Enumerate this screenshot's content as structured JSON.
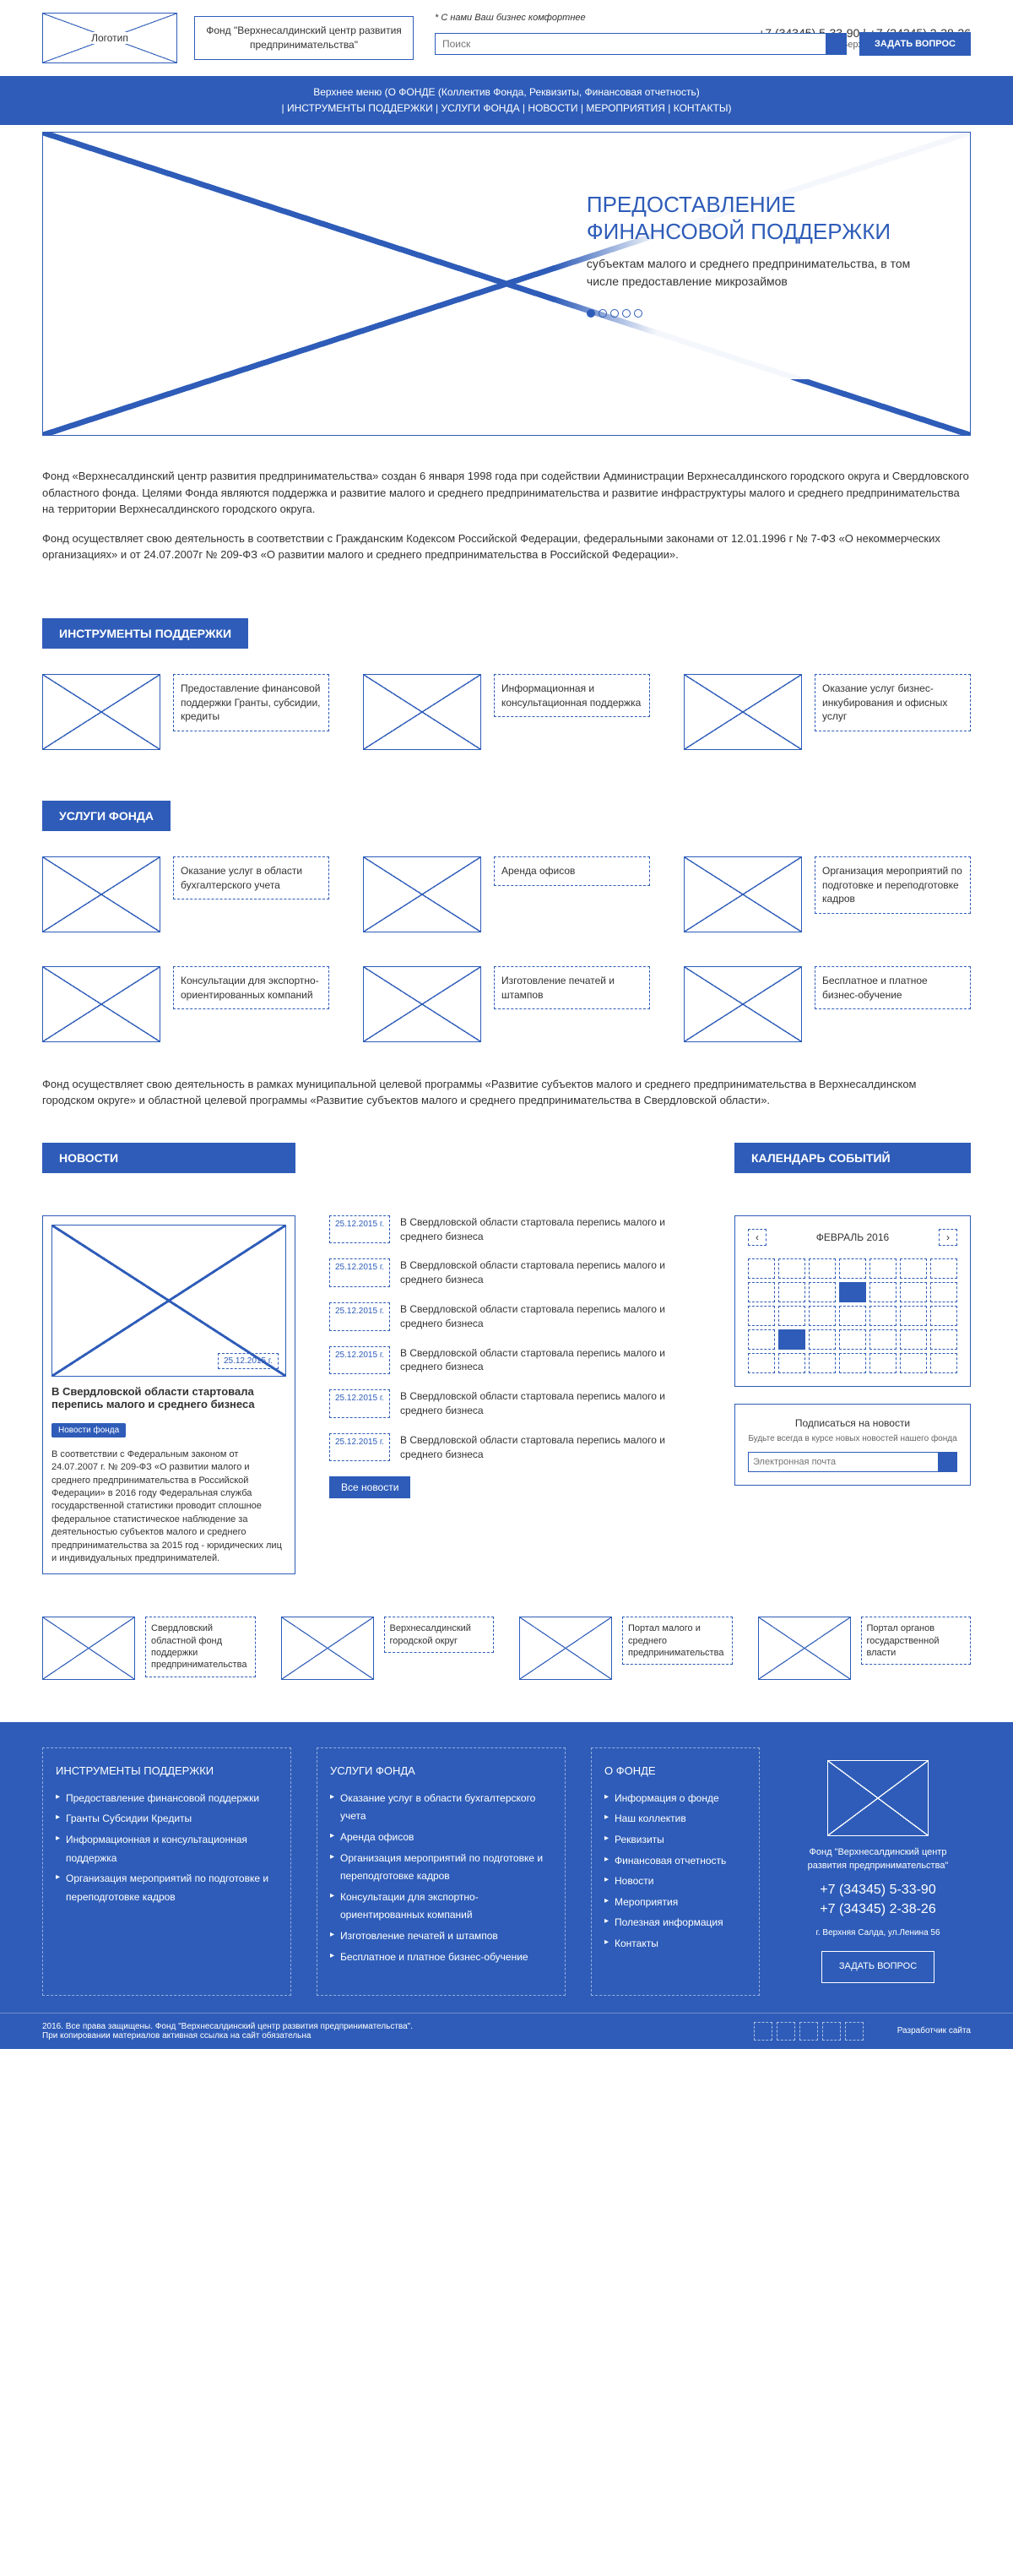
{
  "colors": {
    "primary": "#2e5cb8",
    "text": "#333",
    "white": "#fff"
  },
  "header": {
    "logo_label": "Логотип",
    "fund_name": "Фонд \"Верхнесалдинский центр развития предпринимательства\"",
    "slogan": "* С нами Ваш бизнес комфортнее",
    "phone1": "+7 (34345) 5-33-90 | +7 (34345) 2-38-26",
    "address": "г. Верхняя Салда, ул.Ленина 56",
    "search_placeholder": "Поиск",
    "ask_button": "ЗАДАТЬ ВОПРОС"
  },
  "nav": {
    "line1": "Верхнее меню (О ФОНДЕ (Коллектив Фонда, Реквизиты, Финансовая отчетность)",
    "line2": "| ИНСТРУМЕНТЫ ПОДДЕРЖКИ | УСЛУГИ ФОНДА | НОВОСТИ | МЕРОПРИЯТИЯ | КОНТАКТЫ)"
  },
  "hero": {
    "title": "ПРЕДОСТАВЛЕНИЕ ФИНАНСОВОЙ ПОДДЕРЖКИ",
    "subtitle": "субъектам малого и среднего предпринимательства, в том числе предоставление микрозаймов",
    "active_dot": 0,
    "total_dots": 5
  },
  "intro": {
    "p1": "Фонд «Верхнесалдинский центр развития предпринимательства» создан 6 января 1998 года при содействии Администрации Верхнесалдинского городского округа и Свердловского областного фонда. Целями Фонда являются поддержка и развитие малого и среднего предпринимательства и развитие инфраструктуры малого и среднего предпринимательства на территории Верхнесалдинского городского округа.",
    "p2": "Фонд осуществляет свою деятельность в соответствии с Гражданским Кодексом Российской Федерации, федеральными законами от 12.01.1996 г № 7-ФЗ «О некоммерческих организациях» и от 24.07.2007г № 209-ФЗ «О развитии малого и среднего предпринимательства в Российской Федерации»."
  },
  "sections": {
    "tools": "ИНСТРУМЕНТЫ ПОДДЕРЖКИ",
    "services": "УСЛУГИ ФОНДА",
    "news": "НОВОСТИ",
    "calendar": "КАЛЕНДАРЬ СОБЫТИЙ"
  },
  "tools": [
    {
      "text": "Предоставление финансовой поддержки Гранты, субсидии, кредиты"
    },
    {
      "text": "Информационная и консультационная поддержка"
    },
    {
      "text": "Оказание услуг бизнес-инкубирования и офисных услуг"
    }
  ],
  "services": [
    {
      "text": "Оказание услуг в области бухгалтерского учета"
    },
    {
      "text": "Аренда офисов"
    },
    {
      "text": "Организация мероприятий по подготовке и переподготовке кадров"
    },
    {
      "text": "Консультации для экспортно-ориентированных компаний"
    },
    {
      "text": "Изготовление печатей и штампов"
    },
    {
      "text": "Бесплатное и платное бизнес-обучение"
    }
  ],
  "para": "Фонд осуществляет свою деятельность в рамках муниципальной целевой программы «Развитие субъектов малого и среднего предпринимательства в Верхнесалдинском городском округе» и областной целевой программы «Развитие субъектов малого и среднего предпринимательства в Свердловской области».",
  "news": {
    "featured": {
      "date": "25.12.2015 г.",
      "title": "В Свердловской области стартовала перепись малого и среднего бизнеса",
      "tag": "Новости фонда",
      "text": "В соответствии с Федеральным законом от 24.07.2007 г. № 209-ФЗ «О развитии малого и среднего предпринимательства в Российской Федерации» в 2016 году Федеральная служба государственной статистики проводит сплошное федеральное статистическое наблюдение за деятельностью субъектов малого и среднего предпринимательства за 2015 год - юридических лиц и индивидуальных предпринимателей."
    },
    "items": [
      {
        "date": "25.12.2015 г.",
        "title": "В Свердловской области стартовала перепись малого и среднего бизнеса"
      },
      {
        "date": "25.12.2015 г.",
        "title": "В Свердловской области стартовала перепись малого и среднего бизнеса"
      },
      {
        "date": "25.12.2015 г.",
        "title": "В Свердловской области стартовала перепись малого и среднего бизнеса"
      },
      {
        "date": "25.12.2015 г.",
        "title": "В Свердловской области стартовала перепись малого и среднего бизнеса"
      },
      {
        "date": "25.12.2015 г.",
        "title": "В Свердловской области стартовала перепись малого и среднего бизнеса"
      },
      {
        "date": "25.12.2015 г.",
        "title": "В Свердловской области стартовала перепись малого и среднего бизнеса"
      }
    ],
    "all_button": "Все новости"
  },
  "calendar": {
    "month": "ФЕВРАЛЬ 2016",
    "active_cells": [
      10,
      22
    ],
    "total_cells": 35
  },
  "subscribe": {
    "title": "Подписаться на новости",
    "subtitle": "Будьте всегда в курсе новых новостей нашего фонда",
    "placeholder": "Электронная почта"
  },
  "partners": [
    {
      "text": "Свердловский областной фонд поддержки предпринимательства"
    },
    {
      "text": "Верхнесалдинский городской округ"
    },
    {
      "text": "Портал малого и среднего предпринимательства"
    },
    {
      "text": "Портал органов государственной власти"
    }
  ],
  "footer": {
    "col1": {
      "title": "ИНСТРУМЕНТЫ ПОДДЕРЖКИ",
      "items": [
        "Предоставление финансовой поддержки",
        "Гранты   Субсидии   Кредиты",
        "Информационная и консультационная поддержка",
        "Организация мероприятий по подготовке и переподготовке кадров"
      ]
    },
    "col2": {
      "title": "УСЛУГИ ФОНДА",
      "items": [
        "Оказание услуг в области бухгалтерского учета",
        "Аренда офисов",
        "Организация мероприятий по подготовке и переподготовке кадров",
        "Консультации для экспортно-ориентированных компаний",
        "Изготовление печатей и штампов",
        "Бесплатное и платное бизнес-обучение"
      ]
    },
    "col3": {
      "title": "О ФОНДЕ",
      "items": [
        "Информация о фонде",
        "Наш коллектив",
        "Реквизиты",
        "Финансовая отчетность",
        "Новости",
        "Мероприятия",
        "Полезная информация",
        "Контакты"
      ]
    },
    "col4": {
      "name": "Фонд \"Верхнесалдинский центр развития предпринимательства\"",
      "phone1": "+7 (34345) 5-33-90",
      "phone2": "+7 (34345) 2-38-26",
      "address": "г. Верхняя Салда, ул.Ленина 56",
      "ask": "ЗАДАТЬ ВОПРОС"
    },
    "copyright": "2016. Все права защищены. Фонд \"Верхнесалдинский центр развития предпринимательства\".\nПри копировании материалов активная ссылка на сайт обязательна",
    "developer": "Разработчик сайта"
  }
}
